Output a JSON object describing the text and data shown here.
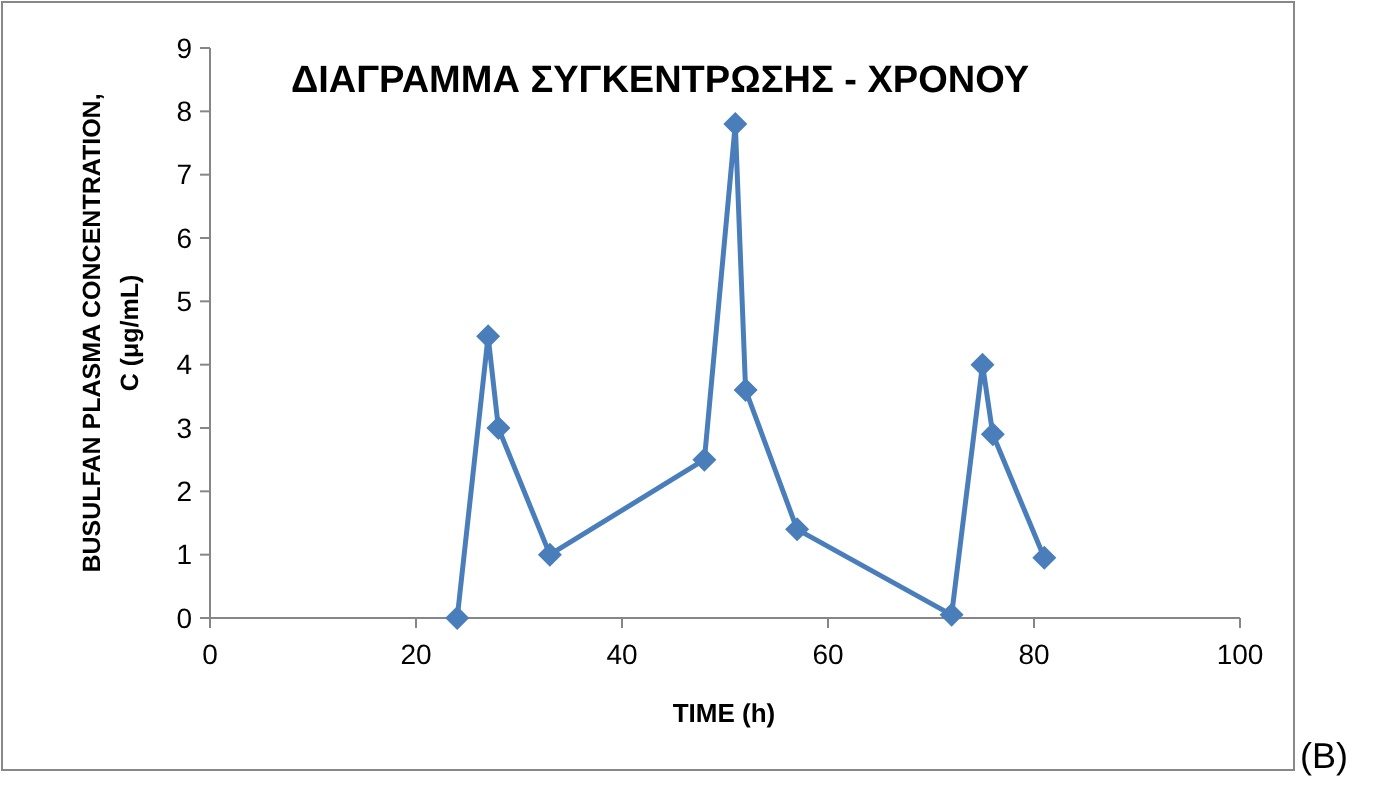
{
  "chart_data": {
    "type": "line",
    "title": "ΔΙΑΓΡΑΜΜΑ ΣΥΓΚΕΝΤΡΩΣΗΣ - ΧΡΟΝΟΥ",
    "xlabel": "TIME (h)",
    "ylabel": "BUSULFAN PLASMA CONCENTRATION, C (μg/mL)",
    "annotations": [
      "(B)"
    ],
    "x": [
      24,
      27,
      28,
      33,
      48,
      51,
      52,
      57,
      72,
      75,
      76,
      81
    ],
    "series": [
      {
        "color": "#4a7ebb",
        "values": [
          0,
          4.45,
          3.0,
          1.0,
          2.5,
          7.8,
          3.6,
          1.4,
          0.05,
          4.0,
          2.9,
          0.95
        ]
      }
    ],
    "xlim": [
      0,
      100
    ],
    "xticks": [
      0,
      20,
      40,
      60,
      80,
      100
    ],
    "ylim": [
      0,
      9
    ],
    "yticks": [
      0,
      1,
      2,
      3,
      4,
      5,
      6,
      7,
      8,
      9
    ],
    "marker": "diamond"
  }
}
